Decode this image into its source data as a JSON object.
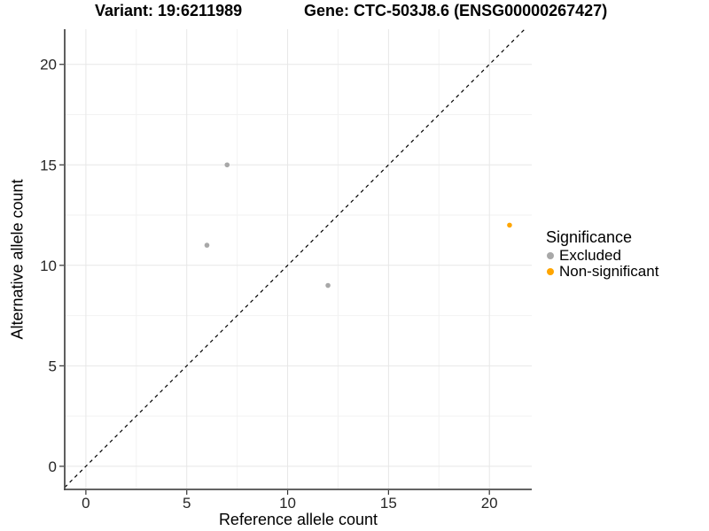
{
  "chart_data": {
    "type": "scatter",
    "title_left": "Variant: 19:6211989",
    "title_right": "Gene: CTC-503J8.6 (ENSG00000267427)",
    "xlabel": "Reference allele count",
    "ylabel": "Alternative allele count",
    "xlim": [
      -1.05,
      22.1
    ],
    "ylim": [
      -1.15,
      21.75
    ],
    "x_ticks": [
      0,
      5,
      10,
      15,
      20
    ],
    "y_ticks": [
      0,
      5,
      10,
      15,
      20
    ],
    "x_minor": [
      2.5,
      7.5,
      12.5,
      17.5
    ],
    "y_minor": [
      2.5,
      7.5,
      12.5,
      17.5
    ],
    "grid": true,
    "identity_line": {
      "style": "dashed",
      "slope": 1,
      "intercept": 0,
      "color": "#000000"
    },
    "series": [
      {
        "name": "Excluded",
        "color": "#a8a8a8",
        "points": [
          [
            6,
            11
          ],
          [
            7,
            15
          ],
          [
            12,
            9
          ]
        ]
      },
      {
        "name": "Non-significant",
        "color": "#ffa500",
        "points": [
          [
            21,
            12
          ]
        ]
      }
    ],
    "legend": {
      "title": "Significance",
      "position": "right",
      "items": [
        {
          "label": "Excluded",
          "color": "#a8a8a8"
        },
        {
          "label": "Non-significant",
          "color": "#ffa500"
        }
      ]
    },
    "colors": {
      "grid_major": "#e7e7e7",
      "grid_minor": "#f2f2f2",
      "axis_line": "#4d4d4d",
      "tick": "#333333",
      "tick_label": "#262626"
    }
  }
}
